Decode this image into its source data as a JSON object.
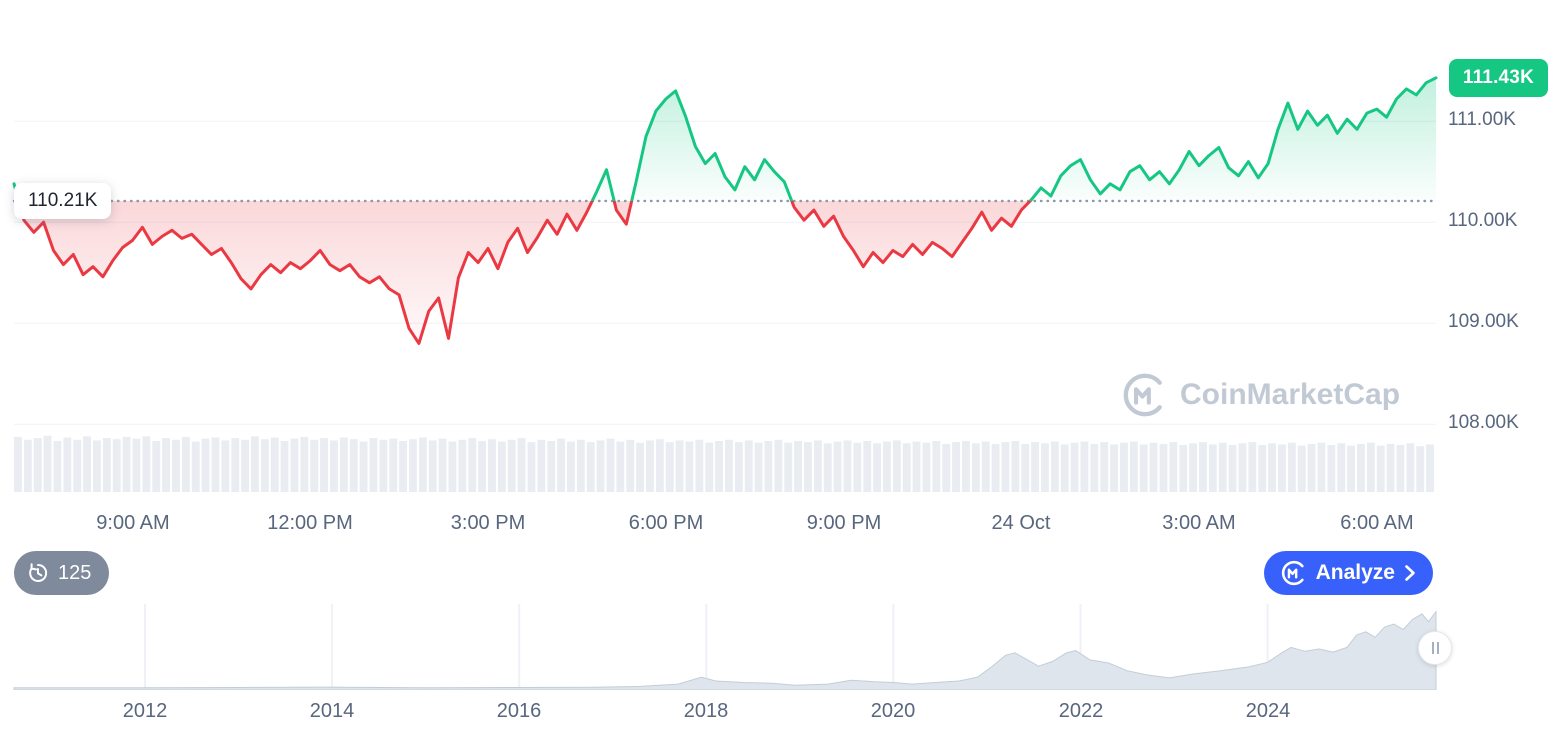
{
  "chart": {
    "current_price_label": "111.43K",
    "baseline_label": "110.21K",
    "y_ticks": [
      "111.00K",
      "110.00K",
      "109.00K",
      "108.00K"
    ],
    "x_labels": [
      "9:00 AM",
      "12:00 PM",
      "3:00 PM",
      "6:00 PM",
      "9:00 PM",
      "24 Oct",
      "3:00 AM",
      "6:00 AM"
    ]
  },
  "controls": {
    "history_count": "125",
    "analyze_label": "Analyze"
  },
  "watermark": {
    "text": "CoinMarketCap"
  },
  "colors": {
    "up": "#16c784",
    "down": "#ea3943",
    "accent_blue": "#3861fb",
    "badge_gray": "#808a9d",
    "axis_text": "#58667e",
    "volume_bar": "#e9edf2",
    "mini_fill": "#dfe5ec",
    "mini_stroke": "#c3cdd9",
    "gridline": "#f0f2f6",
    "baseline_dots": "#8f97a8"
  },
  "chart_data": {
    "type": "line",
    "description": "24-hour price line chart (thousands USD) with baseline at 110.21K, volume bars, and all-time range-selector mini area chart",
    "main": {
      "unit": "K",
      "baseline": 110.21,
      "ylim": [
        107.25,
        112.2
      ],
      "t_start_hour": 7,
      "t_end_hour": 31,
      "y_tick_values": [
        111,
        110,
        109,
        108
      ],
      "x_tick_hours": [
        9,
        12,
        15,
        18,
        21,
        24,
        27,
        30
      ],
      "values": [
        110.38,
        110.02,
        109.9,
        110.0,
        109.72,
        109.58,
        109.68,
        109.48,
        109.56,
        109.46,
        109.62,
        109.75,
        109.82,
        109.95,
        109.78,
        109.86,
        109.92,
        109.84,
        109.88,
        109.78,
        109.68,
        109.74,
        109.6,
        109.44,
        109.34,
        109.48,
        109.58,
        109.5,
        109.6,
        109.54,
        109.62,
        109.72,
        109.58,
        109.52,
        109.58,
        109.46,
        109.4,
        109.46,
        109.34,
        109.28,
        108.95,
        108.8,
        109.12,
        109.25,
        108.85,
        109.45,
        109.7,
        109.6,
        109.74,
        109.54,
        109.8,
        109.94,
        109.7,
        109.85,
        110.02,
        109.88,
        110.08,
        109.92,
        110.1,
        110.3,
        110.52,
        110.12,
        109.98,
        110.4,
        110.85,
        111.1,
        111.22,
        111.3,
        111.05,
        110.75,
        110.58,
        110.68,
        110.45,
        110.32,
        110.55,
        110.42,
        110.62,
        110.5,
        110.4,
        110.15,
        110.02,
        110.12,
        109.96,
        110.06,
        109.86,
        109.72,
        109.56,
        109.7,
        109.6,
        109.72,
        109.66,
        109.78,
        109.68,
        109.8,
        109.74,
        109.66,
        109.8,
        109.94,
        110.1,
        109.92,
        110.04,
        109.96,
        110.12,
        110.22,
        110.34,
        110.26,
        110.46,
        110.56,
        110.62,
        110.42,
        110.28,
        110.38,
        110.32,
        110.5,
        110.56,
        110.42,
        110.5,
        110.38,
        110.52,
        110.7,
        110.56,
        110.66,
        110.74,
        110.54,
        110.46,
        110.6,
        110.44,
        110.58,
        110.92,
        111.18,
        110.92,
        111.1,
        110.96,
        111.06,
        110.88,
        111.02,
        110.92,
        111.08,
        111.12,
        111.04,
        111.22,
        111.32,
        111.26,
        111.38,
        111.43
      ],
      "volume": [
        0.95,
        0.9,
        0.93,
        0.97,
        0.88,
        0.94,
        0.9,
        0.96,
        0.89,
        0.93,
        0.91,
        0.95,
        0.92,
        0.96,
        0.88,
        0.93,
        0.9,
        0.95,
        0.87,
        0.92,
        0.94,
        0.89,
        0.93,
        0.9,
        0.96,
        0.91,
        0.94,
        0.88,
        0.92,
        0.95,
        0.9,
        0.93,
        0.89,
        0.94,
        0.91,
        0.87,
        0.93,
        0.9,
        0.92,
        0.88,
        0.91,
        0.94,
        0.89,
        0.92,
        0.87,
        0.9,
        0.93,
        0.88,
        0.91,
        0.87,
        0.9,
        0.93,
        0.86,
        0.9,
        0.88,
        0.92,
        0.87,
        0.9,
        0.86,
        0.89,
        0.92,
        0.87,
        0.9,
        0.85,
        0.89,
        0.91,
        0.86,
        0.89,
        0.87,
        0.9,
        0.85,
        0.88,
        0.9,
        0.86,
        0.89,
        0.85,
        0.88,
        0.9,
        0.85,
        0.88,
        0.86,
        0.89,
        0.84,
        0.87,
        0.89,
        0.85,
        0.88,
        0.84,
        0.87,
        0.89,
        0.84,
        0.87,
        0.85,
        0.88,
        0.83,
        0.86,
        0.88,
        0.84,
        0.87,
        0.83,
        0.86,
        0.88,
        0.83,
        0.86,
        0.84,
        0.87,
        0.82,
        0.85,
        0.87,
        0.83,
        0.86,
        0.82,
        0.85,
        0.87,
        0.82,
        0.85,
        0.83,
        0.86,
        0.81,
        0.84,
        0.86,
        0.82,
        0.85,
        0.81,
        0.84,
        0.86,
        0.81,
        0.84,
        0.82,
        0.85,
        0.8,
        0.83,
        0.85,
        0.81,
        0.84,
        0.8,
        0.83,
        0.85,
        0.8,
        0.83,
        0.81,
        0.84,
        0.79,
        0.82
      ]
    },
    "mini": {
      "type": "area",
      "xlim": [
        2010.6,
        2025.8
      ],
      "year_ticks": [
        2012,
        2014,
        2016,
        2018,
        2020,
        2022,
        2024
      ],
      "points": [
        [
          2010.6,
          0.004
        ],
        [
          2012,
          0.004
        ],
        [
          2013,
          0.006
        ],
        [
          2013.6,
          0.01
        ],
        [
          2013.95,
          0.012
        ],
        [
          2014.3,
          0.008
        ],
        [
          2015,
          0.004
        ],
        [
          2016,
          0.006
        ],
        [
          2016.8,
          0.01
        ],
        [
          2017.3,
          0.02
        ],
        [
          2017.7,
          0.05
        ],
        [
          2017.95,
          0.14
        ],
        [
          2018.1,
          0.09
        ],
        [
          2018.4,
          0.07
        ],
        [
          2018.7,
          0.06
        ],
        [
          2018.95,
          0.035
        ],
        [
          2019.3,
          0.05
        ],
        [
          2019.55,
          0.1
        ],
        [
          2019.8,
          0.08
        ],
        [
          2020.0,
          0.07
        ],
        [
          2020.2,
          0.05
        ],
        [
          2020.45,
          0.07
        ],
        [
          2020.7,
          0.09
        ],
        [
          2020.9,
          0.14
        ],
        [
          2021.05,
          0.27
        ],
        [
          2021.2,
          0.42
        ],
        [
          2021.3,
          0.45
        ],
        [
          2021.45,
          0.35
        ],
        [
          2021.55,
          0.28
        ],
        [
          2021.7,
          0.34
        ],
        [
          2021.85,
          0.45
        ],
        [
          2021.95,
          0.48
        ],
        [
          2022.1,
          0.36
        ],
        [
          2022.3,
          0.32
        ],
        [
          2022.5,
          0.22
        ],
        [
          2022.7,
          0.17
        ],
        [
          2022.95,
          0.13
        ],
        [
          2023.2,
          0.18
        ],
        [
          2023.5,
          0.22
        ],
        [
          2023.8,
          0.27
        ],
        [
          2024.0,
          0.33
        ],
        [
          2024.15,
          0.45
        ],
        [
          2024.25,
          0.52
        ],
        [
          2024.4,
          0.47
        ],
        [
          2024.55,
          0.5
        ],
        [
          2024.7,
          0.46
        ],
        [
          2024.85,
          0.52
        ],
        [
          2024.95,
          0.68
        ],
        [
          2025.05,
          0.72
        ],
        [
          2025.15,
          0.65
        ],
        [
          2025.25,
          0.78
        ],
        [
          2025.35,
          0.82
        ],
        [
          2025.45,
          0.75
        ],
        [
          2025.55,
          0.88
        ],
        [
          2025.65,
          0.95
        ],
        [
          2025.72,
          0.85
        ],
        [
          2025.8,
          0.98
        ]
      ]
    }
  }
}
